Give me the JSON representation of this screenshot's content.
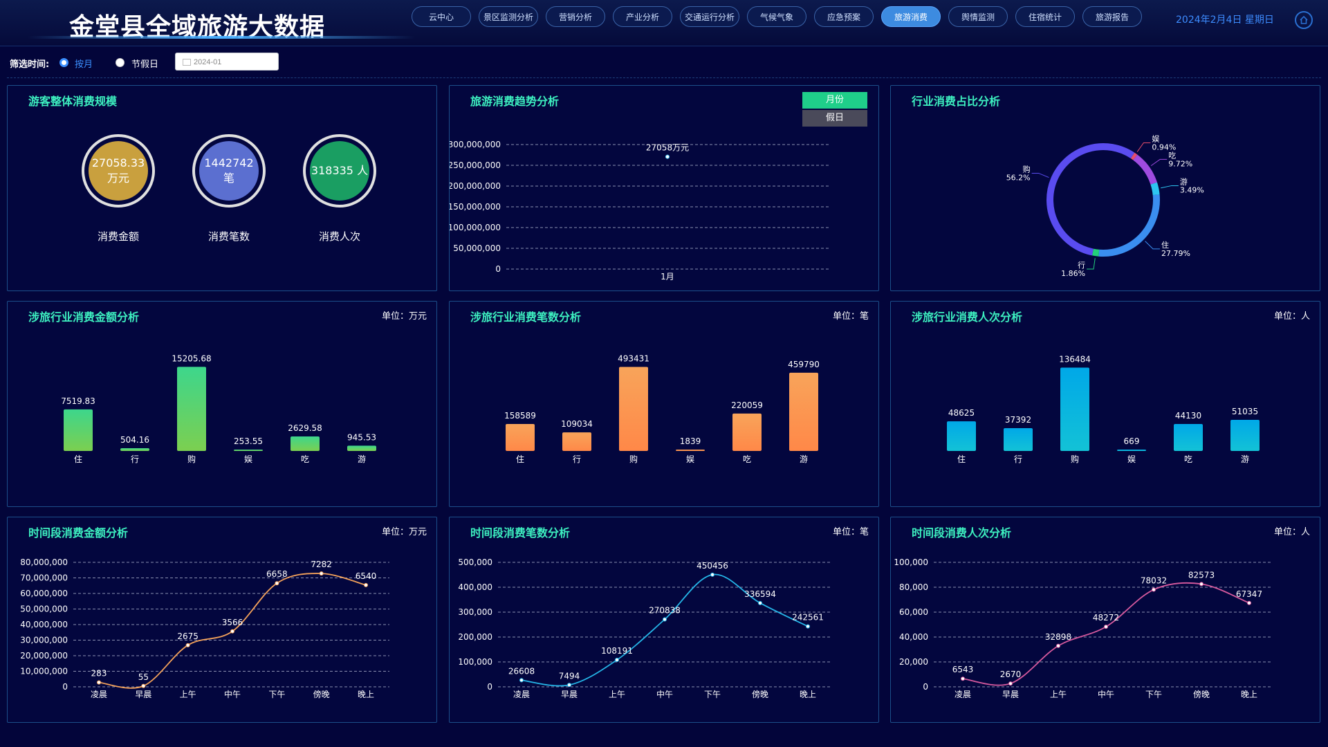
{
  "header": {
    "title": "金堂县全域旅游大数据",
    "nav": [
      "云中心",
      "景区监测分析",
      "营销分析",
      "产业分析",
      "交通运行分析",
      "气候气象",
      "应急预案",
      "旅游消费",
      "舆情监测",
      "住宿统计",
      "旅游报告"
    ],
    "active_nav": "旅游消费",
    "date": "2024年2月4日 星期日"
  },
  "filter": {
    "label": "筛选时间:",
    "option_month": "按月",
    "option_holiday": "节假日",
    "selected": "按月",
    "date_value": "2024-01"
  },
  "overall": {
    "title": "游客整体消费规模",
    "items": [
      {
        "value": "27058.33",
        "unit": "万元",
        "label": "消费金额",
        "color": "#c9a03e"
      },
      {
        "value": "1442742",
        "unit": "笔",
        "label": "消费笔数",
        "color": "#5b6fd0"
      },
      {
        "value": "318335",
        "unit": "人",
        "label": "消费人次",
        "color": "#1a9e62"
      }
    ]
  },
  "trend": {
    "title": "旅游消费趋势分析",
    "toggle_month": "月份",
    "toggle_holiday": "假日"
  },
  "share": {
    "title": "行业消费占比分析"
  },
  "industry_amount": {
    "title": "涉旅行业消费金额分析",
    "unit": "单位：万元"
  },
  "industry_count": {
    "title": "涉旅行业消费笔数分析",
    "unit": "单位：笔"
  },
  "industry_people": {
    "title": "涉旅行业消费人次分析",
    "unit": "单位：人"
  },
  "period_amount": {
    "title": "时间段消费金额分析",
    "unit": "单位：万元"
  },
  "period_count": {
    "title": "时间段消费笔数分析",
    "unit": "单位：笔"
  },
  "period_people": {
    "title": "时间段消费人次分析",
    "unit": "单位：人"
  },
  "chart_data": [
    {
      "id": "trend",
      "type": "line",
      "categories": [
        "1月"
      ],
      "values": [
        270583300
      ],
      "data_labels": [
        "27058万元"
      ],
      "ylim": [
        0,
        300000000
      ],
      "yticks": [
        "0",
        "50,000,000",
        "100,000,000",
        "150,000,000",
        "200,000,000",
        "250,000,000",
        "300,000,000"
      ],
      "color": "#4fd3ff"
    },
    {
      "id": "share",
      "type": "pie",
      "slices": [
        {
          "name": "购",
          "value": 56.2,
          "label": "56.2%",
          "color": "#5a4cf0"
        },
        {
          "name": "娱",
          "value": 0.94,
          "label": "0.94%",
          "color": "#e84d6a"
        },
        {
          "name": "吃",
          "value": 9.72,
          "label": "9.72%",
          "color": "#a04be0"
        },
        {
          "name": "游",
          "value": 3.49,
          "label": "3.49%",
          "color": "#2dc5f0"
        },
        {
          "name": "住",
          "value": 27.79,
          "label": "27.79%",
          "color": "#3a8ef0"
        },
        {
          "name": "行",
          "value": 1.86,
          "label": "1.86%",
          "color": "#22d07a"
        }
      ]
    },
    {
      "id": "industry_amount",
      "type": "bar",
      "categories": [
        "住",
        "行",
        "购",
        "娱",
        "吃",
        "游"
      ],
      "values": [
        7519.83,
        504.16,
        15205.68,
        253.55,
        2629.58,
        945.53
      ],
      "labels": [
        "7519.83",
        "504.16",
        "15205.68",
        "253.55",
        "2629.58",
        "945.53"
      ],
      "ylim": [
        0,
        16000
      ],
      "color_top": "#3dd68c",
      "color_bottom": "#7ccf50"
    },
    {
      "id": "industry_count",
      "type": "bar",
      "categories": [
        "住",
        "行",
        "购",
        "娱",
        "吃",
        "游"
      ],
      "values": [
        158589,
        109034,
        493431,
        1839,
        220059,
        459790
      ],
      "labels": [
        "158589",
        "109034",
        "493431",
        "1839",
        "220059",
        "459790"
      ],
      "ylim": [
        0,
        520000
      ],
      "color_top": "#f8a45a",
      "color_bottom": "#ff8848"
    },
    {
      "id": "industry_people",
      "type": "bar",
      "categories": [
        "住",
        "行",
        "购",
        "娱",
        "吃",
        "游"
      ],
      "values": [
        48625,
        37392,
        136484,
        669,
        44130,
        51035
      ],
      "labels": [
        "48625",
        "37392",
        "136484",
        "669",
        "44130",
        "51035"
      ],
      "ylim": [
        0,
        145000
      ],
      "color_top": "#00a8e8",
      "color_bottom": "#13c2d6"
    },
    {
      "id": "period_amount",
      "type": "line",
      "categories": [
        "凌晨",
        "早晨",
        "上午",
        "中午",
        "下午",
        "傍晚",
        "晚上"
      ],
      "values": [
        2830000,
        550000,
        26750000,
        35660000,
        66580000,
        72820000,
        65400000
      ],
      "labels": [
        "283",
        "55",
        "2675",
        "3566",
        "6658",
        "7282",
        "6540"
      ],
      "ylim": [
        0,
        80000000
      ],
      "yticks": [
        "0",
        "10,000,000",
        "20,000,000",
        "30,000,000",
        "40,000,000",
        "50,000,000",
        "60,000,000",
        "70,000,000",
        "80,000,000"
      ],
      "color": "#f4a25a"
    },
    {
      "id": "period_count",
      "type": "line",
      "categories": [
        "凌晨",
        "早晨",
        "上午",
        "中午",
        "下午",
        "傍晚",
        "晚上"
      ],
      "values": [
        26608,
        7494,
        108191,
        270838,
        450456,
        336594,
        242561
      ],
      "labels": [
        "26608",
        "7494",
        "108191",
        "270838",
        "450456",
        "336594",
        "242561"
      ],
      "ylim": [
        0,
        500000
      ],
      "yticks": [
        "0",
        "100,000",
        "200,000",
        "300,000",
        "400,000",
        "500,000"
      ],
      "color": "#25b6e8"
    },
    {
      "id": "period_people",
      "type": "line",
      "categories": [
        "凌晨",
        "早晨",
        "上午",
        "中午",
        "下午",
        "傍晚",
        "晚上"
      ],
      "values": [
        6543,
        2670,
        32898,
        48272,
        78032,
        82573,
        67347
      ],
      "labels": [
        "6543",
        "2670",
        "32898",
        "48272",
        "78032",
        "82573",
        "67347"
      ],
      "ylim": [
        0,
        100000
      ],
      "yticks": [
        "0",
        "20,000",
        "40,000",
        "60,000",
        "80,000",
        "100,000"
      ],
      "color": "#d85a9e"
    }
  ]
}
